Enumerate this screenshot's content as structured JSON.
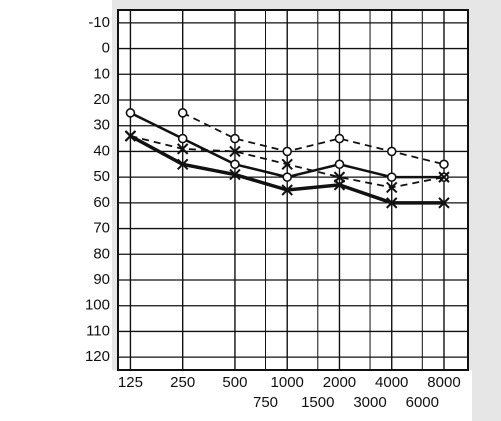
{
  "chart_data": {
    "type": "line",
    "xscale": "log",
    "xlim": [
      106,
      11000
    ],
    "xticks": [
      125,
      250,
      500,
      750,
      1000,
      1500,
      2000,
      3000,
      4000,
      6000,
      8000
    ],
    "ylim": [
      -15,
      125
    ],
    "yticks": [
      -10,
      0,
      10,
      20,
      30,
      40,
      50,
      60,
      70,
      80,
      90,
      100,
      110,
      120
    ],
    "y_inverted": true,
    "grid": true,
    "x": [
      125,
      250,
      500,
      1000,
      2000,
      4000,
      8000
    ],
    "series": [
      {
        "color": "#111111",
        "marker": "o",
        "dashed": false,
        "width": 2.5,
        "values": [
          25,
          35,
          45,
          50,
          45,
          50,
          50
        ]
      },
      {
        "color": "#111111",
        "marker": "x",
        "dashed": false,
        "width": 3.5,
        "values": [
          34,
          45,
          49,
          55,
          53,
          60,
          60
        ]
      },
      {
        "color": "#111111",
        "marker": "o",
        "dashed": true,
        "width": 1.8,
        "values": [
          null,
          25,
          35,
          40,
          35,
          40,
          45
        ]
      },
      {
        "color": "#111111",
        "marker": "x",
        "dashed": true,
        "width": 1.8,
        "values": [
          34,
          39,
          40,
          45,
          50,
          54,
          50
        ]
      }
    ]
  }
}
